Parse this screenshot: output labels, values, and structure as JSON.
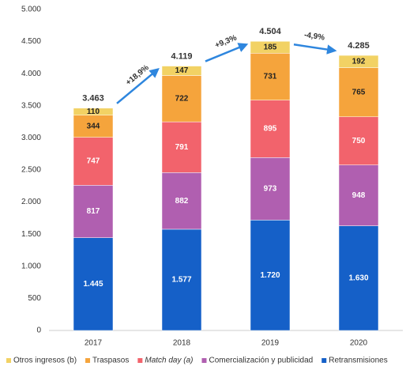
{
  "chart_data": {
    "type": "stacked_bar",
    "categories": [
      "2017",
      "2018",
      "2019",
      "2020"
    ],
    "series": [
      {
        "name": "Retransmisiones",
        "color": "#1560c8",
        "values": [
          1445,
          1577,
          1720,
          1630
        ],
        "value_labels": [
          "1.445",
          "1.577",
          "1.720",
          "1.630"
        ]
      },
      {
        "name": "Comercialización y publicidad",
        "color": "#b05fb0",
        "values": [
          817,
          882,
          973,
          948
        ]
      },
      {
        "name": "Match day (a)",
        "color": "#f2636c",
        "values": [
          747,
          791,
          895,
          750
        ]
      },
      {
        "name": "Traspasos",
        "color": "#f5a43c",
        "values": [
          344,
          722,
          731,
          765
        ]
      },
      {
        "name": "Otros ingresos (b)",
        "color": "#f2d264",
        "values": [
          110,
          147,
          185,
          192
        ]
      }
    ],
    "totals": {
      "values": [
        3463,
        4119,
        4504,
        4285
      ],
      "value_labels": [
        "3.463",
        "4.119",
        "4.504",
        "4.285"
      ]
    },
    "growth": {
      "values": [
        18.9,
        9.3,
        -4.9
      ],
      "value_labels": [
        "+18,9%",
        "+9,3%",
        "-4,9%"
      ]
    },
    "ylim": [
      0,
      5000
    ],
    "yticks": [
      0,
      500,
      {
        "value": 1000,
        "label": "1.000"
      },
      {
        "value": 1500,
        "label": "1.500"
      },
      {
        "value": 2000,
        "label": "2.000"
      },
      {
        "value": 2500,
        "label": "2.500"
      },
      {
        "value": 3000,
        "label": "3.000"
      },
      {
        "value": 3500,
        "label": "3.500"
      },
      {
        "value": 4000,
        "label": "4.000"
      },
      {
        "value": 4500,
        "label": "4.500"
      },
      {
        "value": 5000,
        "label": "5.000"
      }
    ],
    "grid": false
  }
}
